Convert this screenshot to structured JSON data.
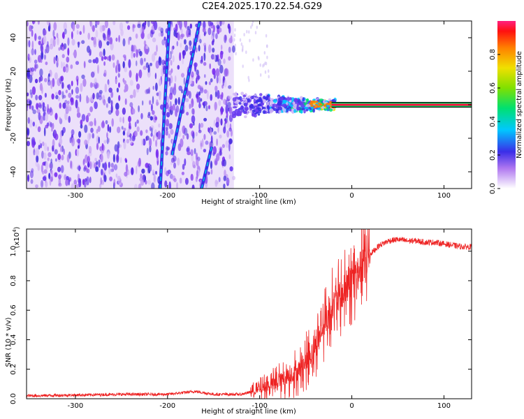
{
  "title": "C2E4.2025.170.22.54.G29",
  "chart_data": [
    {
      "type": "heatmap",
      "xlabel": "Height of straight line (km)",
      "ylabel": "Frequency (Hz)",
      "xlim": [
        -353,
        130
      ],
      "ylim": [
        -50,
        50
      ],
      "xticks": [
        -300,
        -200,
        -100,
        0,
        100
      ],
      "yticks": [
        -40,
        -20,
        0,
        20,
        40
      ],
      "colorbar": {
        "label": "Normalized spectral amplitude",
        "range": [
          0,
          1
        ],
        "ticks": [
          0.0,
          0.2,
          0.4,
          0.6,
          0.8
        ]
      },
      "noise_region_x": [
        -353,
        -128
      ],
      "tone_line": {
        "x_start": -22,
        "x_end": 130,
        "frequency": 0
      },
      "signal_traces": [
        {
          "x": [
            -208,
            -198
          ],
          "y": [
            -50,
            50
          ]
        },
        {
          "x": [
            -195,
            -165
          ],
          "y": [
            -30,
            50
          ]
        },
        {
          "x": [
            -163,
            -152
          ],
          "y": [
            -50,
            -25
          ]
        }
      ],
      "grid": false
    },
    {
      "type": "line",
      "xlabel": "Height of straight line (km)",
      "ylabel": "SNR (10 * v/v)",
      "y_multiplier": "(x10",
      "y_multiplier_exp": "4",
      "y_multiplier_close": ")",
      "xlim": [
        -353,
        130
      ],
      "ylim": [
        0,
        1.15
      ],
      "xticks": [
        -300,
        -200,
        -100,
        0,
        100
      ],
      "yticks": [
        0.0,
        0.2,
        0.4,
        0.6,
        0.8,
        1.0
      ],
      "series": [
        {
          "color": "#ee2222",
          "x": [
            -353,
            -300,
            -250,
            -200,
            -170,
            -150,
            -120,
            -100,
            -80,
            -60,
            -50,
            -40,
            -30,
            -20,
            -10,
            0,
            10,
            20,
            30,
            40,
            50,
            60,
            70,
            80,
            90,
            100,
            110,
            120,
            130
          ],
          "y": [
            0.02,
            0.025,
            0.03,
            0.03,
            0.05,
            0.03,
            0.03,
            0.06,
            0.12,
            0.18,
            0.25,
            0.35,
            0.5,
            0.65,
            0.7,
            0.8,
            0.9,
            0.98,
            1.04,
            1.07,
            1.08,
            1.07,
            1.07,
            1.06,
            1.06,
            1.05,
            1.04,
            1.03,
            1.03
          ]
        }
      ],
      "grid": false
    }
  ]
}
